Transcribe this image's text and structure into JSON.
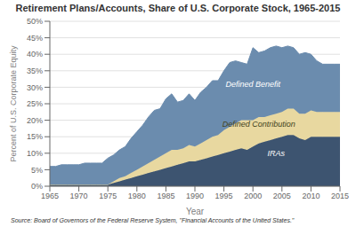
{
  "chart_data": {
    "type": "area",
    "stacked": true,
    "title": "Retirement Plans/Accounts, Share of U.S. Corporate Stock, 1965-2015",
    "xlabel": "Year",
    "ylabel": "Percent of U.S. Corporate Equity",
    "source": "Source: Board of Governors of the Federal Reserve System, \"Financial Accounts of the United States.\"",
    "x": [
      1965,
      1966,
      1967,
      1968,
      1969,
      1970,
      1971,
      1972,
      1973,
      1974,
      1975,
      1976,
      1977,
      1978,
      1979,
      1980,
      1981,
      1982,
      1983,
      1984,
      1985,
      1986,
      1987,
      1988,
      1989,
      1990,
      1991,
      1992,
      1993,
      1994,
      1995,
      1996,
      1997,
      1998,
      1999,
      2000,
      2001,
      2002,
      2003,
      2004,
      2005,
      2006,
      2007,
      2008,
      2009,
      2010,
      2011,
      2012,
      2013,
      2014,
      2015
    ],
    "series": [
      {
        "color": "#3d5470",
        "values": [
          0.5,
          0.5,
          0.5,
          0.5,
          0.5,
          0.5,
          0.5,
          0.5,
          0.5,
          0.5,
          0.5,
          1.0,
          1.5,
          2.0,
          2.5,
          3.0,
          3.5,
          4.0,
          4.5,
          5.0,
          5.5,
          6.0,
          6.5,
          7.0,
          7.5,
          7.5,
          8.0,
          8.5,
          9.0,
          9.5,
          10.0,
          10.5,
          11.0,
          11.5,
          11.0,
          12.0,
          13.0,
          13.5,
          14.0,
          14.5,
          15.0,
          15.5,
          15.5,
          14.5,
          14.0,
          15.0,
          15.0,
          15.0,
          15.0,
          15.0,
          15.0
        ]
      },
      {
        "color": "#e8d8a0",
        "values": [
          0.0,
          0.0,
          0.0,
          0.0,
          0.0,
          0.0,
          0.0,
          0.0,
          0.0,
          0.0,
          0.0,
          0.5,
          1.0,
          1.0,
          1.5,
          2.0,
          2.5,
          3.0,
          3.5,
          4.0,
          4.5,
          5.0,
          4.5,
          4.5,
          5.0,
          4.5,
          5.0,
          5.5,
          6.0,
          6.0,
          7.0,
          7.5,
          8.0,
          8.5,
          9.0,
          8.0,
          8.0,
          7.5,
          7.5,
          7.5,
          7.5,
          8.0,
          8.0,
          7.5,
          8.0,
          8.0,
          7.5,
          7.5,
          7.5,
          7.5,
          7.5
        ]
      },
      {
        "color": "#6b8cae",
        "values": [
          5.5,
          5.5,
          6.0,
          6.0,
          6.0,
          6.0,
          6.5,
          6.5,
          6.5,
          6.5,
          8.0,
          8.0,
          8.5,
          9.0,
          10.5,
          11.5,
          12.5,
          14.0,
          15.0,
          14.5,
          16.5,
          17.0,
          14.5,
          14.5,
          15.5,
          14.0,
          15.5,
          16.0,
          17.0,
          16.5,
          18.0,
          19.5,
          19.0,
          17.5,
          17.0,
          22.0,
          19.5,
          20.0,
          20.5,
          20.5,
          19.5,
          19.0,
          18.5,
          18.0,
          18.5,
          17.0,
          15.5,
          14.5,
          14.5,
          14.5,
          14.5
        ]
      }
    ],
    "annotations": [
      {
        "text": "Defined Benefit",
        "x": 2000,
        "y": 31,
        "color": "#ffffff"
      },
      {
        "text": "Defined Contribution",
        "x": 2001,
        "y": 19,
        "color": "#444422"
      },
      {
        "text": "IRAs",
        "x": 2004,
        "y": 10,
        "color": "#ffffff"
      }
    ],
    "xlim": [
      1965,
      2015
    ],
    "xticks": [
      1965,
      1970,
      1975,
      1980,
      1985,
      1990,
      1995,
      2000,
      2005,
      2010,
      2015
    ],
    "ylim": [
      0,
      50
    ],
    "yticks": [
      {
        "value": 0,
        "label": "0%"
      },
      {
        "value": 5,
        "label": "5%"
      },
      {
        "value": 10,
        "label": "10%"
      },
      {
        "value": 15,
        "label": "15%"
      },
      {
        "value": 20,
        "label": "20%"
      },
      {
        "value": 25,
        "label": "25%"
      },
      {
        "value": 30,
        "label": "30%"
      },
      {
        "value": 35,
        "label": "35%"
      },
      {
        "value": 40,
        "label": "40%"
      },
      {
        "value": 45,
        "label": "45%"
      },
      {
        "value": 50,
        "label": "50%"
      }
    ],
    "grid": "y"
  }
}
